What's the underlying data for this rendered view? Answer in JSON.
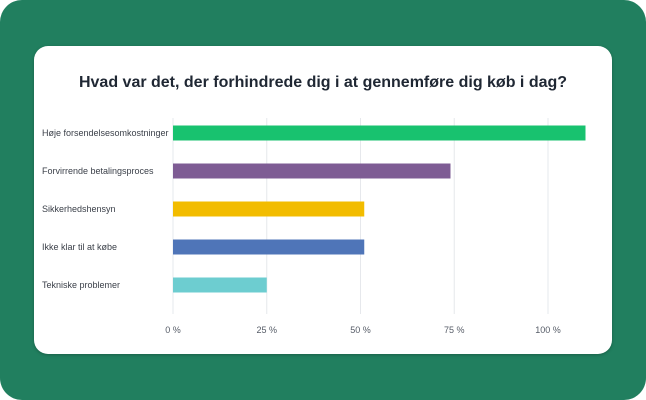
{
  "chart_data": {
    "type": "bar",
    "orientation": "horizontal",
    "title": "Hvad var det, der forhindrede dig i at gennemføre dig køb i dag?",
    "xlabel": "",
    "ylabel": "",
    "xlim": [
      0,
      100
    ],
    "grid": true,
    "legend": "none",
    "categories": [
      "Høje forsendelsesomkostninger",
      "Forvirrende betalingsproces",
      "Sikkerhedshensyn",
      "Ikke klar til at købe",
      "Tekniske problemer"
    ],
    "values": [
      110,
      74,
      51,
      51,
      25
    ],
    "colors": [
      "#18c26f",
      "#7e5c94",
      "#f2bc00",
      "#4f75b8",
      "#6dcdd0"
    ],
    "x_ticks": [
      0,
      25,
      50,
      75,
      100
    ],
    "x_tick_labels": [
      "0 %",
      "25 %",
      "50 %",
      "75 %",
      "100 %"
    ]
  },
  "theme": {
    "background": "#217f5f",
    "card": "#ffffff",
    "title_color": "#1f2733"
  }
}
